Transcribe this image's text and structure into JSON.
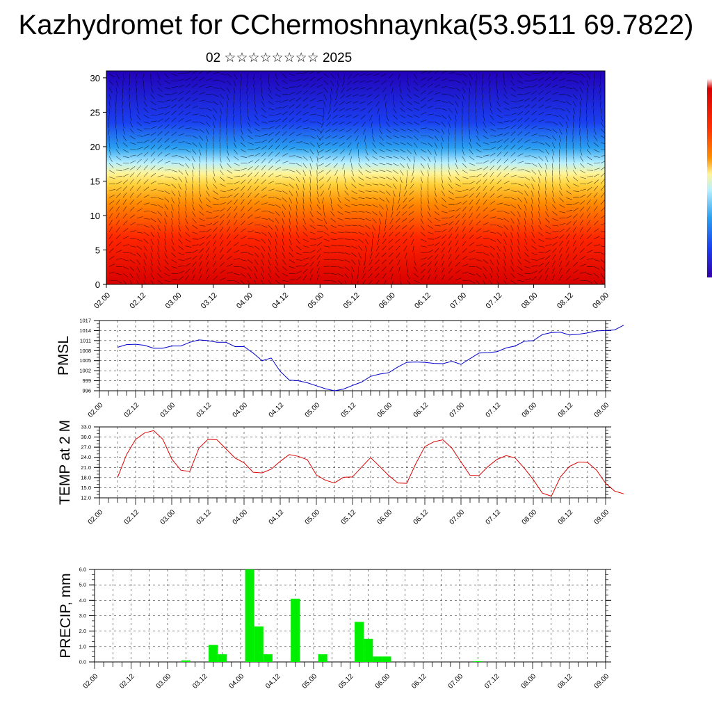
{
  "page": {
    "title": "Kazhydromet for CChermoshnaynka(53.9511 69.7822)",
    "subtitle": "02 ☆☆☆☆☆☆☆☆ 2025"
  },
  "colors": {
    "pmsl_line": "#0000cc",
    "temp_line": "#dd0000",
    "precip_bar": "#00ee00",
    "cross_section_scale": [
      "#2a00c0",
      "#1a30f0",
      "#2aa0f0",
      "#b8f0ff",
      "#fff59a",
      "#ffc000",
      "#ff7000",
      "#ff2000",
      "#d80000"
    ]
  },
  "chart_data": [
    {
      "type": "heatmap",
      "title": "",
      "xlabel": "",
      "ylabel": "",
      "x_ticks": [
        "02.00",
        "02.12",
        "03.00",
        "03.12",
        "04.00",
        "04.12",
        "05.00",
        "05.12",
        "06.00",
        "06.12",
        "07.00",
        "07.12",
        "08.00",
        "08.12",
        "09.00"
      ],
      "y_ticks": [
        "0",
        "5",
        "10",
        "15",
        "20",
        "25",
        "30"
      ],
      "ylim": [
        0,
        31
      ],
      "description_of_fill": "warm red near surface, yellow band ~15, light blue ~20, dark blue aloft; overlaid wind barbs",
      "wind_barbs": true,
      "colorbar_placement": "right"
    },
    {
      "type": "line",
      "ylabel": "PMSL",
      "x_ticks": [
        "02.00",
        "02.12",
        "03.00",
        "03.12",
        "04.00",
        "04.12",
        "05.00",
        "05.12",
        "06.00",
        "06.12",
        "07.00",
        "07.12",
        "08.00",
        "08.12",
        "09.00"
      ],
      "y_ticks": [
        "996",
        "999",
        "1002",
        "1005",
        "1008",
        "1011",
        "1014",
        "1017"
      ],
      "ylim": [
        996,
        1017
      ],
      "grid": true,
      "x": [
        0,
        3,
        6,
        9,
        12,
        15,
        18,
        21,
        24,
        27,
        30,
        33,
        36,
        39,
        42,
        45,
        48,
        51,
        54,
        57,
        60,
        63,
        66,
        69,
        72,
        75,
        78,
        81,
        84,
        87,
        90,
        93,
        96,
        99,
        102,
        105,
        108,
        111,
        114,
        117,
        120,
        123,
        126,
        129,
        132,
        135,
        138,
        141,
        144,
        147,
        150,
        153,
        156,
        159,
        162,
        165,
        168
      ],
      "series": [
        {
          "values": [
            1009.0,
            1009.8,
            1009.9,
            1009.6,
            1008.7,
            1008.7,
            1009.4,
            1009.4,
            1010.5,
            1011.2,
            1011.0,
            1010.5,
            1010.5,
            1009.2,
            1009.2,
            1007.3,
            1005.0,
            1005.8,
            1001.8,
            999.2,
            999.0,
            998.4,
            997.5,
            996.6,
            996.0,
            996.5,
            997.6,
            998.6,
            1000.3,
            1001.0,
            1001.4,
            1003.1,
            1004.5,
            1004.6,
            1004.5,
            1004.2,
            1004.1,
            1004.8,
            1003.9,
            1005.6,
            1007.3,
            1007.4,
            1007.7,
            1008.8,
            1009.4,
            1010.8,
            1011.0,
            1012.8,
            1013.4,
            1013.5,
            1012.7,
            1012.9,
            1013.3,
            1013.9,
            1014.0,
            1014.2,
            1015.6
          ]
        }
      ]
    },
    {
      "type": "line",
      "ylabel": "TEMP at 2 M",
      "x_ticks": [
        "02.00",
        "02.12",
        "03.00",
        "03.12",
        "04.00",
        "04.12",
        "05.00",
        "05.12",
        "06.00",
        "06.12",
        "07.00",
        "07.12",
        "08.00",
        "08.12",
        "09.00"
      ],
      "y_ticks": [
        "12.0",
        "15.0",
        "18.0",
        "21.0",
        "24.0",
        "27.0",
        "30.0",
        "33.0"
      ],
      "ylim": [
        12,
        33
      ],
      "grid": true,
      "x": [
        0,
        3,
        6,
        9,
        12,
        15,
        18,
        21,
        24,
        27,
        30,
        33,
        36,
        39,
        42,
        45,
        48,
        51,
        54,
        57,
        60,
        63,
        66,
        69,
        72,
        75,
        78,
        81,
        84,
        87,
        90,
        93,
        96,
        99,
        102,
        105,
        108,
        111,
        114,
        117,
        120,
        123,
        126,
        129,
        132,
        135,
        138,
        141,
        144,
        147,
        150,
        153,
        156,
        159,
        162,
        165,
        168
      ],
      "series": [
        {
          "values": [
            18.0,
            24.8,
            29.3,
            31.2,
            31.9,
            29.4,
            23.5,
            20.2,
            19.8,
            26.7,
            29.3,
            29.2,
            26.5,
            23.8,
            22.4,
            19.6,
            19.4,
            20.5,
            22.8,
            24.8,
            24.3,
            23.3,
            18.8,
            17.2,
            16.4,
            18.1,
            18.2,
            21.1,
            23.9,
            21.3,
            18.6,
            16.4,
            16.3,
            22.1,
            27.2,
            28.6,
            29.2,
            26.7,
            22.6,
            18.7,
            18.6,
            21.3,
            23.4,
            24.5,
            23.8,
            20.8,
            17.4,
            13.4,
            12.5,
            18.2,
            21.3,
            22.6,
            22.5,
            20.2,
            16.3,
            14.0,
            13.2
          ]
        }
      ]
    },
    {
      "type": "bar",
      "ylabel": "PRECIP, mm",
      "x_ticks": [
        "02.00",
        "02.12",
        "03.00",
        "03.12",
        "04.00",
        "04.12",
        "05.00",
        "05.12",
        "06.00",
        "06.12",
        "07.00",
        "07.12",
        "08.00",
        "08.12",
        "09.00"
      ],
      "y_ticks": [
        "0.0",
        "1.0",
        "2.0",
        "3.0",
        "4.0",
        "5.0",
        "6.0"
      ],
      "ylim": [
        0,
        6
      ],
      "grid": true,
      "bar_hours": [
        24,
        33,
        36,
        45,
        48,
        51,
        60,
        69,
        81,
        84,
        87,
        90,
        120
      ],
      "values": [
        0.1,
        1.1,
        0.5,
        6.0,
        2.3,
        0.5,
        4.1,
        0.5,
        2.6,
        1.5,
        0.35,
        0.35,
        0.05
      ]
    }
  ]
}
